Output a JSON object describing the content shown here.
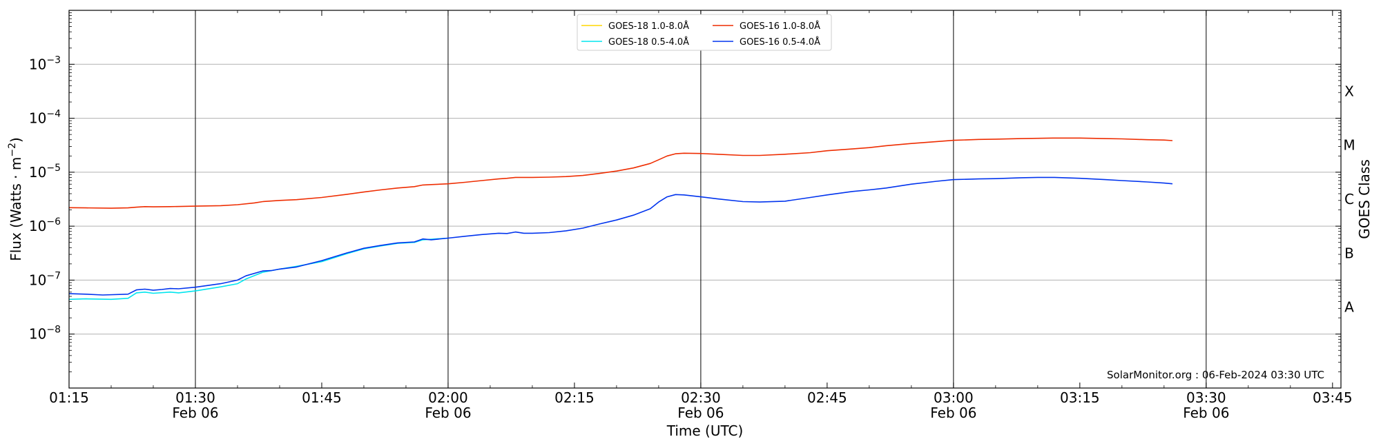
{
  "chart_data": {
    "type": "line",
    "title": "",
    "xlabel": "Time (UTC)",
    "ylabel_main": "Flux (Watts · m",
    "ylabel_sup": "−2",
    "ylabel_close": ")",
    "ylabel_right": "GOES Class",
    "y_scale": "log",
    "ylim": [
      1e-09,
      0.01
    ],
    "xlim": [
      "01:15",
      "03:46"
    ],
    "grid": "horizontal at decades, vertical lines every 30 min",
    "legend_placement": "top-center",
    "annotation": "SolarMonitor.org : 06-Feb-2024 03:30 UTC",
    "y_ticks": [
      {
        "exp": -3,
        "base": "10",
        "sup": "−3"
      },
      {
        "exp": -4,
        "base": "10",
        "sup": "−4"
      },
      {
        "exp": -5,
        "base": "10",
        "sup": "−5"
      },
      {
        "exp": -6,
        "base": "10",
        "sup": "−6"
      },
      {
        "exp": -7,
        "base": "10",
        "sup": "−7"
      },
      {
        "exp": -8,
        "base": "10",
        "sup": "−8"
      }
    ],
    "x_ticks": [
      {
        "t": "01:15",
        "label": "01:15",
        "label2": ""
      },
      {
        "t": "01:30",
        "label": "01:30",
        "label2": "Feb 06"
      },
      {
        "t": "01:45",
        "label": "01:45",
        "label2": ""
      },
      {
        "t": "02:00",
        "label": "02:00",
        "label2": "Feb 06"
      },
      {
        "t": "02:15",
        "label": "02:15",
        "label2": ""
      },
      {
        "t": "02:30",
        "label": "02:30",
        "label2": "Feb 06"
      },
      {
        "t": "02:45",
        "label": "02:45",
        "label2": ""
      },
      {
        "t": "03:00",
        "label": "03:00",
        "label2": "Feb 06"
      },
      {
        "t": "03:15",
        "label": "03:15",
        "label2": ""
      },
      {
        "t": "03:30",
        "label": "03:30",
        "label2": "Feb 06"
      },
      {
        "t": "03:45",
        "label": "03:45",
        "label2": ""
      }
    ],
    "class_labels": [
      {
        "label": "X",
        "exp": -3.5
      },
      {
        "label": "M",
        "exp": -4.5
      },
      {
        "label": "C",
        "exp": -5.5
      },
      {
        "label": "B",
        "exp": -6.5
      },
      {
        "label": "A",
        "exp": -7.5
      }
    ],
    "series": [
      {
        "name": "GOES-18 1.0-8.0Å",
        "color": "#FFD700",
        "x": [],
        "y": []
      },
      {
        "name": "GOES-18 0.5-4.0Å",
        "color": "#00E5EE",
        "x": [
          "01:15",
          "01:17",
          "01:20",
          "01:22",
          "01:23",
          "01:24",
          "01:25",
          "01:27",
          "01:28",
          "01:30",
          "01:33",
          "01:35",
          "01:36",
          "01:38",
          "01:40",
          "01:42",
          "01:45",
          "01:48",
          "01:50",
          "01:52",
          "01:54",
          "01:56",
          "01:57",
          "02:00"
        ],
        "y": [
          4.4e-08,
          4.5e-08,
          4.4e-08,
          4.6e-08,
          5.8e-08,
          6e-08,
          5.7e-08,
          6e-08,
          5.8e-08,
          6.3e-08,
          7.5e-08,
          8.6e-08,
          1.05e-07,
          1.4e-07,
          1.6e-07,
          1.8e-07,
          2.2e-07,
          3.1e-07,
          3.8e-07,
          4.3e-07,
          4.8e-07,
          5e-07,
          5.6e-07,
          6e-07
        ]
      },
      {
        "name": "GOES-16 1.0-8.0Å",
        "color": "#EE2C00",
        "x": [
          "01:15",
          "01:17",
          "01:20",
          "01:22",
          "01:23",
          "01:24",
          "01:25",
          "01:27",
          "01:30",
          "01:33",
          "01:35",
          "01:37",
          "01:38",
          "01:40",
          "01:42",
          "01:45",
          "01:48",
          "01:50",
          "01:52",
          "01:54",
          "01:56",
          "01:57",
          "01:58",
          "02:00",
          "02:02",
          "02:04",
          "02:06",
          "02:07",
          "02:08",
          "02:10",
          "02:12",
          "02:14",
          "02:16",
          "02:18",
          "02:20",
          "02:22",
          "02:24",
          "02:25",
          "02:26",
          "02:27",
          "02:28",
          "02:30",
          "02:32",
          "02:35",
          "02:37",
          "02:40",
          "02:43",
          "02:45",
          "02:48",
          "02:50",
          "02:52",
          "02:55",
          "02:58",
          "03:00",
          "03:03",
          "03:05",
          "03:08",
          "03:10",
          "03:12",
          "03:15",
          "03:18",
          "03:20",
          "03:23",
          "03:25",
          "03:26"
        ],
        "y": [
          2.2e-06,
          2.18e-06,
          2.15e-06,
          2.18e-06,
          2.25e-06,
          2.3e-06,
          2.28e-06,
          2.3e-06,
          2.35e-06,
          2.4e-06,
          2.5e-06,
          2.7e-06,
          2.85e-06,
          3e-06,
          3.1e-06,
          3.4e-06,
          3.9e-06,
          4.3e-06,
          4.7e-06,
          5.1e-06,
          5.4e-06,
          5.8e-06,
          5.9e-06,
          6.1e-06,
          6.5e-06,
          7e-06,
          7.5e-06,
          7.7e-06,
          8e-06,
          8e-06,
          8.1e-06,
          8.3e-06,
          8.7e-06,
          9.5e-06,
          1.05e-05,
          1.2e-05,
          1.45e-05,
          1.7e-05,
          2e-05,
          2.2e-05,
          2.25e-05,
          2.22e-05,
          2.15e-05,
          2.05e-05,
          2.05e-05,
          2.15e-05,
          2.3e-05,
          2.5e-05,
          2.7e-05,
          2.85e-05,
          3.1e-05,
          3.4e-05,
          3.7e-05,
          3.9e-05,
          4.05e-05,
          4.1e-05,
          4.2e-05,
          4.25e-05,
          4.3e-05,
          4.3e-05,
          4.2e-05,
          4.15e-05,
          4e-05,
          3.95e-05,
          3.85e-05
        ]
      },
      {
        "name": "GOES-16 0.5-4.0Å",
        "color": "#0033EE",
        "x": [
          "01:15",
          "01:17",
          "01:19",
          "01:22",
          "01:23",
          "01:24",
          "01:25",
          "01:26",
          "01:27",
          "01:28",
          "01:30",
          "01:33",
          "01:35",
          "01:36",
          "01:38",
          "01:39",
          "01:40",
          "01:42",
          "01:45",
          "01:48",
          "01:50",
          "01:52",
          "01:54",
          "01:56",
          "01:57",
          "01:58",
          "02:00",
          "02:02",
          "02:04",
          "02:06",
          "02:07",
          "02:08",
          "02:09",
          "02:10",
          "02:12",
          "02:14",
          "02:16",
          "02:18",
          "02:20",
          "02:22",
          "02:24",
          "02:25",
          "02:26",
          "02:27",
          "02:28",
          "02:30",
          "02:32",
          "02:35",
          "02:37",
          "02:40",
          "02:43",
          "02:45",
          "02:48",
          "02:50",
          "02:52",
          "02:55",
          "02:58",
          "03:00",
          "03:03",
          "03:05",
          "03:08",
          "03:10",
          "03:12",
          "03:15",
          "03:18",
          "03:20",
          "03:23",
          "03:25",
          "03:26"
        ],
        "y": [
          5.6e-08,
          5.5e-08,
          5.3e-08,
          5.5e-08,
          6.6e-08,
          6.8e-08,
          6.5e-08,
          6.7e-08,
          7e-08,
          6.9e-08,
          7.4e-08,
          8.6e-08,
          1e-07,
          1.2e-07,
          1.48e-07,
          1.5e-07,
          1.6e-07,
          1.75e-07,
          2.3e-07,
          3.2e-07,
          3.9e-07,
          4.4e-07,
          4.9e-07,
          5.1e-07,
          5.8e-07,
          5.6e-07,
          6e-07,
          6.5e-07,
          7e-07,
          7.4e-07,
          7.3e-07,
          7.8e-07,
          7.4e-07,
          7.4e-07,
          7.6e-07,
          8.2e-07,
          9.2e-07,
          1.1e-06,
          1.3e-06,
          1.6e-06,
          2.1e-06,
          2.8e-06,
          3.5e-06,
          3.85e-06,
          3.8e-06,
          3.5e-06,
          3.2e-06,
          2.85e-06,
          2.8e-06,
          2.9e-06,
          3.4e-06,
          3.8e-06,
          4.4e-06,
          4.7e-06,
          5.1e-06,
          6e-06,
          6.8e-06,
          7.3e-06,
          7.5e-06,
          7.6e-06,
          7.9e-06,
          8e-06,
          8e-06,
          7.7e-06,
          7.3e-06,
          7e-06,
          6.6e-06,
          6.3e-06,
          6.1e-06
        ]
      }
    ]
  }
}
